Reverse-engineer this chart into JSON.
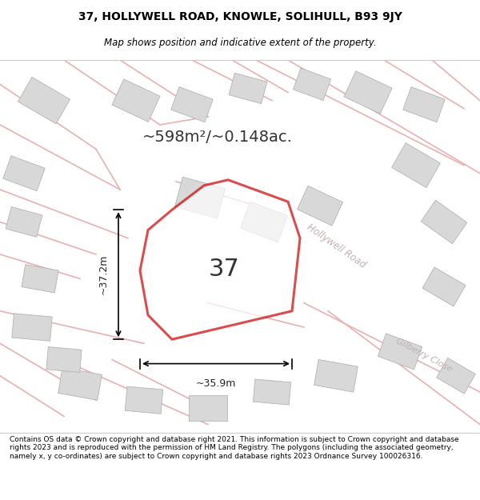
{
  "title_line1": "37, HOLLYWELL ROAD, KNOWLE, SOLIHULL, B93 9JY",
  "title_line2": "Map shows position and indicative extent of the property.",
  "area_text": "~598m²/~0.148ac.",
  "label_37": "37",
  "dim_width": "~35.9m",
  "dim_height": "~37.2m",
  "road_label1": "Hollywell Road",
  "road_label2": "Gilberry Close",
  "footer": "Contains OS data © Crown copyright and database right 2021. This information is subject to Crown copyright and database rights 2023 and is reproduced with the permission of HM Land Registry. The polygons (including the associated geometry, namely x, y co-ordinates) are subject to Crown copyright and database rights 2023 Ordnance Survey 100026316.",
  "bg_color": "#f5f0ee",
  "map_bg": "#f5f0ee",
  "road_fill": "#e8d8d8",
  "building_fill": "#d8d8d8",
  "highlight_fill": "none",
  "highlight_edge": "#cc0000",
  "road_line_color": "#e8b0b0",
  "title_bg": "#ffffff",
  "footer_bg": "#ffffff",
  "map_area": [
    0.0,
    0.08,
    1.0,
    0.82
  ]
}
